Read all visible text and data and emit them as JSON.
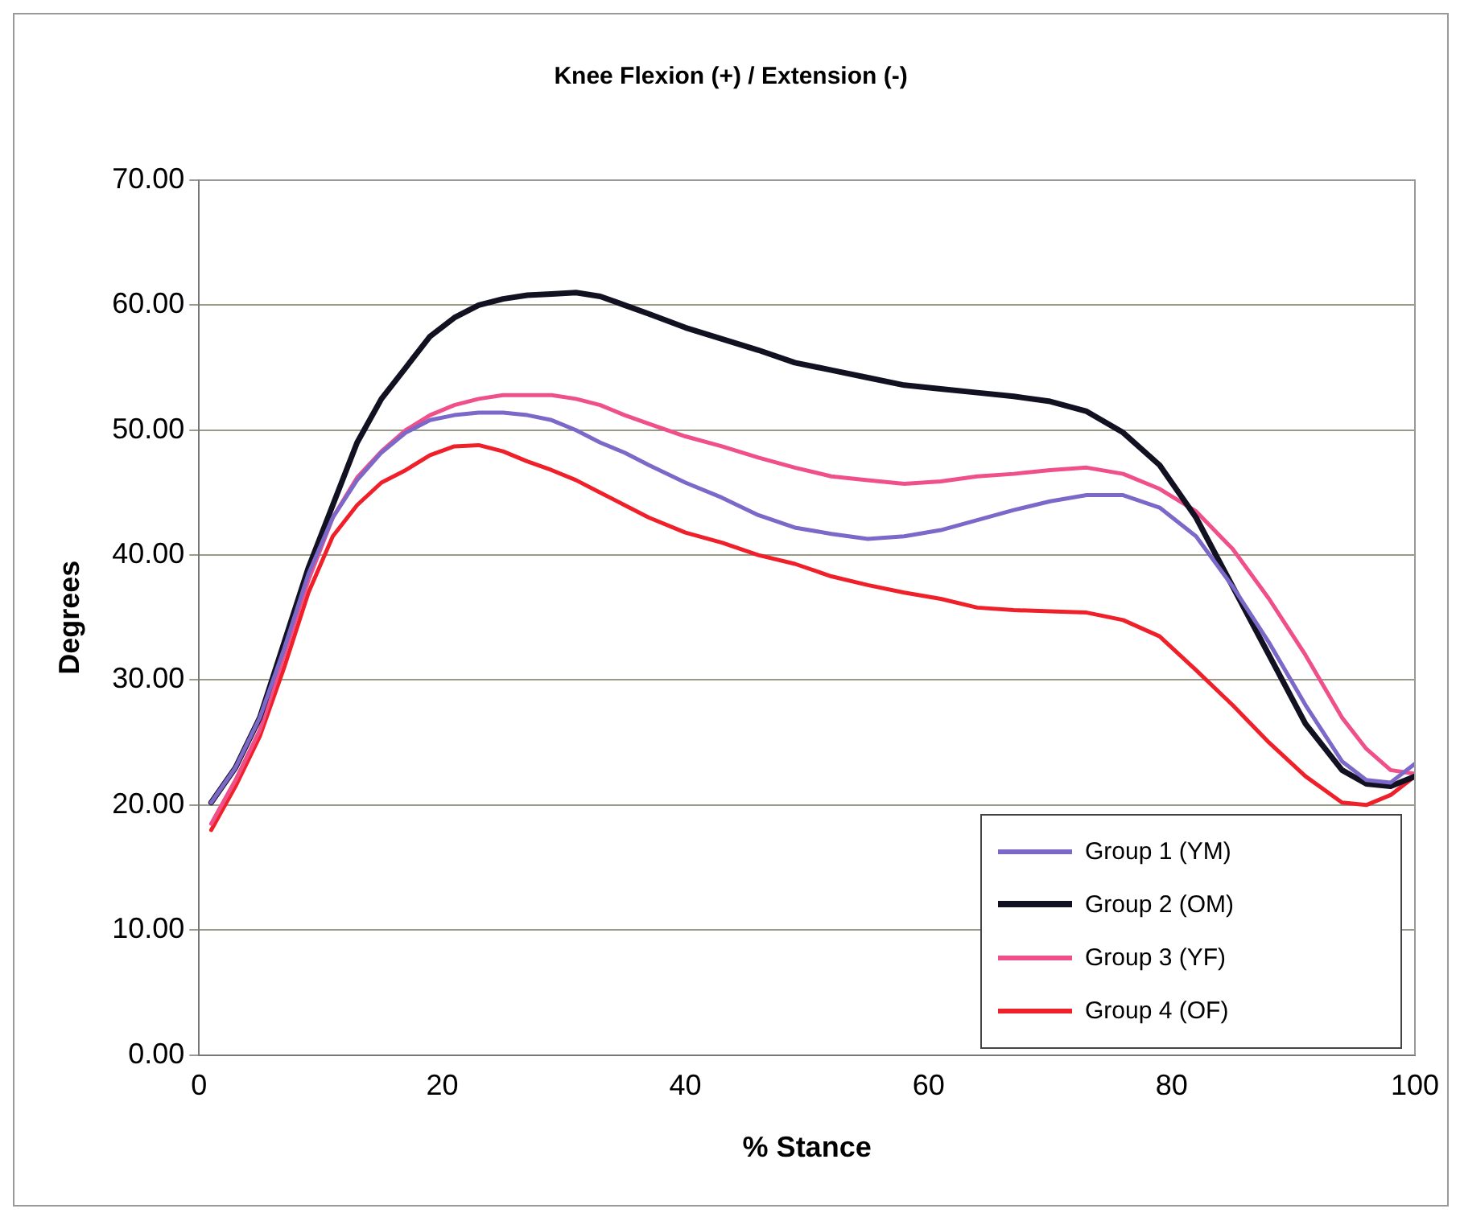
{
  "chart_data": {
    "type": "line",
    "title": "Knee Flexion (+) / Extension (-)",
    "xlabel": "% Stance",
    "ylabel": "Degrees",
    "x": [
      1,
      3,
      5,
      7,
      9,
      11,
      13,
      15,
      17,
      19,
      21,
      23,
      25,
      27,
      29,
      31,
      33,
      35,
      37,
      40,
      43,
      46,
      49,
      52,
      55,
      58,
      61,
      64,
      67,
      70,
      73,
      76,
      79,
      82,
      85,
      88,
      91,
      94,
      96,
      98,
      100
    ],
    "series": [
      {
        "name": "Group 1 (YM)",
        "color": "#7b68c8",
        "values": [
          20.2,
          23,
          27,
          32.5,
          38.5,
          43,
          46,
          48.2,
          49.8,
          50.8,
          51.2,
          51.4,
          51.4,
          51.2,
          50.8,
          50,
          49,
          48.2,
          47.2,
          45.8,
          44.6,
          43.2,
          42.2,
          41.7,
          41.3,
          41.5,
          42,
          42.8,
          43.6,
          44.3,
          44.8,
          44.8,
          43.8,
          41.5,
          37.5,
          33,
          28,
          23.5,
          22,
          21.8,
          23.3
        ]
      },
      {
        "name": "Group 2 (OM)",
        "color": "#111122",
        "values": [
          20.2,
          23,
          27,
          33,
          39,
          44,
          49,
          52.5,
          55,
          57.5,
          59,
          60,
          60.5,
          60.8,
          60.9,
          61,
          60.7,
          60,
          59.3,
          58.2,
          57.3,
          56.4,
          55.4,
          54.8,
          54.2,
          53.6,
          53.3,
          53,
          52.7,
          52.3,
          51.5,
          49.8,
          47.2,
          43,
          37.5,
          32,
          26.5,
          22.8,
          21.7,
          21.5,
          22.3
        ]
      },
      {
        "name": "Group 3 (YF)",
        "color": "#f0508a",
        "values": [
          18.5,
          22,
          26,
          32,
          38,
          43,
          46.2,
          48.3,
          50,
          51.2,
          52,
          52.5,
          52.8,
          52.8,
          52.8,
          52.5,
          52,
          51.2,
          50.5,
          49.5,
          48.7,
          47.8,
          47,
          46.3,
          46,
          45.7,
          45.9,
          46.3,
          46.5,
          46.8,
          47,
          46.5,
          45.3,
          43.5,
          40.5,
          36.5,
          32,
          27,
          24.5,
          22.8,
          22.5
        ]
      },
      {
        "name": "Group 4 (OF)",
        "color": "#f0202a",
        "values": [
          18,
          21.5,
          25.5,
          31,
          37,
          41.5,
          44,
          45.8,
          46.8,
          48,
          48.7,
          48.8,
          48.3,
          47.5,
          46.8,
          46,
          45,
          44,
          43,
          41.8,
          41,
          40,
          39.3,
          38.3,
          37.6,
          37,
          36.5,
          35.8,
          35.6,
          35.5,
          35.4,
          34.8,
          33.5,
          30.8,
          28,
          25,
          22.3,
          20.2,
          20,
          20.8,
          22.3
        ]
      }
    ],
    "xlim": [
      0,
      100
    ],
    "xticks": [
      0,
      20,
      40,
      60,
      80,
      100
    ],
    "ylim": [
      0,
      70
    ],
    "yticks": [
      {
        "value": 0,
        "label": "0.00"
      },
      {
        "value": 10,
        "label": "10.00"
      },
      {
        "value": 20,
        "label": "20.00"
      },
      {
        "value": 30,
        "label": "30.00"
      },
      {
        "value": 40,
        "label": "40.00"
      },
      {
        "value": 50,
        "label": "50.00"
      },
      {
        "value": 60,
        "label": "60.00"
      },
      {
        "value": 70,
        "label": "70.00"
      }
    ],
    "grid": "y",
    "legend": "bottom right",
    "marker": "none",
    "line_style": "solid"
  }
}
